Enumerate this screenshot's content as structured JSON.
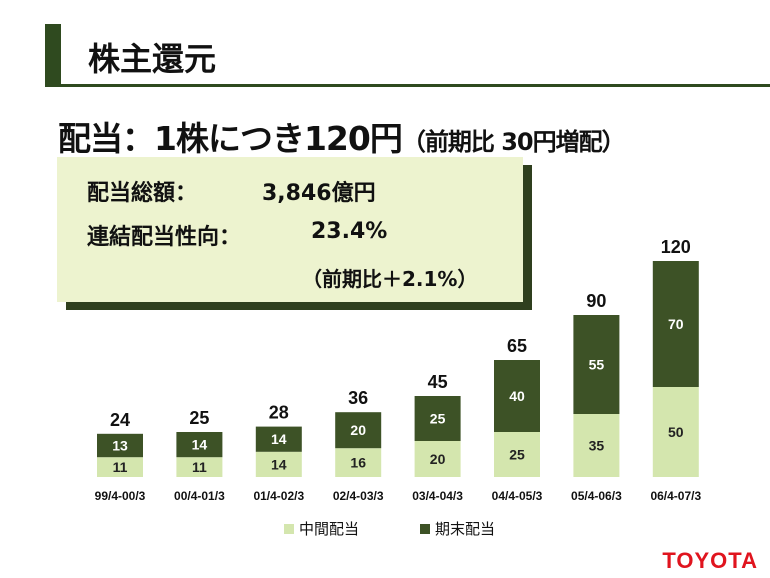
{
  "header": {
    "title": "株主還元"
  },
  "subtitle": {
    "main": "配当：1株につき120円",
    "note": "（前期比 30円増配）"
  },
  "summary": {
    "total_label": "配当総額：",
    "total_value": "3,846億円",
    "payout_label": "連結配当性向：",
    "payout_value": "23.4%",
    "payout_change": "（前期比＋2.1%）"
  },
  "logo": "TOYOTA",
  "colors": {
    "interim": "#d4e6ae",
    "year_end": "#3d5226"
  },
  "chart_data": {
    "type": "bar",
    "stacked": true,
    "categories": [
      "99/4-00/3",
      "00/4-01/3",
      "01/4-02/3",
      "02/4-03/3",
      "03/4-04/3",
      "04/4-05/3",
      "05/4-06/3",
      "06/4-07/3"
    ],
    "series": [
      {
        "name": "中間配当",
        "values": [
          11,
          11,
          14,
          16,
          20,
          25,
          35,
          50
        ]
      },
      {
        "name": "期末配当",
        "values": [
          13,
          14,
          14,
          20,
          25,
          40,
          55,
          70
        ]
      }
    ],
    "totals": [
      24,
      25,
      28,
      36,
      45,
      65,
      90,
      120
    ],
    "legend": "bottom",
    "ylim": [
      0,
      120
    ]
  }
}
